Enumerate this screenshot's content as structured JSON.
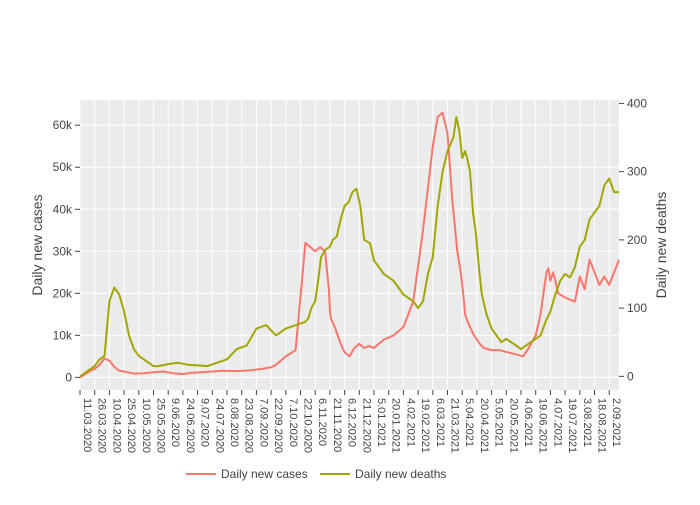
{
  "chart_data": {
    "type": "line",
    "title": "",
    "x_tick_labels": [
      "11.03.2020",
      "26.03.2020",
      "10.04.2020",
      "25.04.2020",
      "10.05.2020",
      "25.05.2020",
      "9.06.2020",
      "24.06.2020",
      "9.07.2020",
      "24.07.2020",
      "8.08.2020",
      "23.08.2020",
      "7.09.2020",
      "22.09.2020",
      "7.10.2020",
      "22.10.2020",
      "6.11.2020",
      "21.11.2020",
      "6.12.2020",
      "21.12.2020",
      "5.01.2021",
      "20.01.2021",
      "4.02.2021",
      "19.02.2021",
      "6.03.2021",
      "21.03.2021",
      "5.04.2021",
      "20.04.2021",
      "5.05.2021",
      "20.05.2021",
      "4.06.2021",
      "19.06.2021",
      "4.07.2021",
      "19.07.2021",
      "3.08.2021",
      "18.08.2021",
      "2.09.2021"
    ],
    "x_range_days": [
      0,
      550
    ],
    "y_left": {
      "title": "Daily new cases",
      "range": [
        -3000,
        66000
      ],
      "ticks": [
        0,
        10000,
        20000,
        30000,
        40000,
        50000,
        60000
      ],
      "tick_labels": [
        "0",
        "10k",
        "20k",
        "30k",
        "40k",
        "50k",
        "60k"
      ]
    },
    "y_right": {
      "title": "Daily new deaths",
      "range": [
        -20,
        405
      ],
      "ticks": [
        0,
        100,
        200,
        300,
        400
      ],
      "tick_labels": [
        "0",
        "100",
        "200",
        "300",
        "400"
      ]
    },
    "grid": true,
    "legend_position": "bottom",
    "series": [
      {
        "name": "Daily new cases",
        "axis": "left",
        "color": "#f8766d",
        "x": [
          0,
          10,
          15,
          20,
          25,
          30,
          35,
          40,
          45,
          55,
          65,
          75,
          85,
          95,
          105,
          115,
          130,
          145,
          160,
          175,
          185,
          195,
          200,
          210,
          220,
          230,
          240,
          245,
          250,
          254,
          255,
          256,
          258,
          260,
          263,
          266,
          270,
          275,
          280,
          285,
          290,
          295,
          300,
          305,
          310,
          320,
          330,
          340,
          350,
          355,
          360,
          365,
          370,
          375,
          380,
          385,
          388,
          391,
          393,
          396,
          398,
          400,
          402,
          405,
          408,
          412,
          420,
          428,
          436,
          445,
          452,
          458,
          465,
          470,
          473,
          476,
          478,
          480,
          483,
          488,
          495,
          505,
          510,
          515,
          520,
          530,
          535,
          540,
          545,
          550
        ],
        "y": [
          0,
          1500,
          2000,
          3000,
          4500,
          4000,
          2500,
          1600,
          1400,
          900,
          1000,
          1200,
          1400,
          1000,
          800,
          1100,
          1300,
          1600,
          1500,
          1700,
          2000,
          2400,
          3000,
          5000,
          6500,
          32000,
          30000,
          31000,
          30000,
          21000,
          16000,
          14000,
          13000,
          12000,
          10000,
          8000,
          6000,
          5000,
          7000,
          8000,
          7000,
          7500,
          7000,
          8000,
          9000,
          10000,
          12000,
          18000,
          35000,
          45000,
          55000,
          62000,
          63000,
          58000,
          42000,
          30000,
          26000,
          20000,
          15000,
          13000,
          12000,
          11000,
          10000,
          9000,
          8000,
          7000,
          6500,
          6500,
          6000,
          5500,
          5000,
          7000,
          10000,
          15000,
          20000,
          25000,
          26000,
          23000,
          25000,
          20000,
          19000,
          18000,
          24000,
          21000,
          28000,
          22000,
          24000,
          22000,
          25000,
          28000
        ],
        "y_scale": "exact_from_chart_units"
      },
      {
        "name": "Daily new deaths",
        "axis": "right",
        "color": "#a3a500",
        "x": [
          0,
          10,
          15,
          20,
          25,
          30,
          35,
          40,
          45,
          50,
          55,
          60,
          65,
          70,
          75,
          80,
          90,
          100,
          110,
          120,
          130,
          140,
          150,
          160,
          170,
          180,
          190,
          200,
          210,
          220,
          230,
          233,
          236,
          240,
          243,
          246,
          250,
          255,
          258,
          262,
          266,
          270,
          274,
          278,
          282,
          286,
          290,
          296,
          300,
          310,
          320,
          330,
          340,
          345,
          350,
          355,
          360,
          365,
          370,
          375,
          378,
          381,
          384,
          387,
          390,
          393,
          395,
          398,
          401,
          404,
          407,
          410,
          415,
          420,
          425,
          430,
          435,
          440,
          445,
          450,
          455,
          460,
          465,
          470,
          475,
          480,
          485,
          490,
          495,
          500,
          505,
          510,
          515,
          520,
          525,
          530,
          535,
          540,
          545,
          550
        ],
        "y": [
          0,
          10,
          15,
          25,
          30,
          110,
          130,
          120,
          95,
          60,
          40,
          30,
          25,
          20,
          15,
          15,
          18,
          20,
          17,
          16,
          15,
          20,
          25,
          40,
          45,
          70,
          75,
          60,
          70,
          75,
          80,
          85,
          100,
          110,
          140,
          175,
          185,
          190,
          200,
          205,
          230,
          250,
          255,
          270,
          275,
          250,
          200,
          195,
          170,
          150,
          140,
          120,
          110,
          100,
          110,
          150,
          175,
          250,
          300,
          330,
          340,
          350,
          380,
          360,
          320,
          330,
          320,
          300,
          240,
          210,
          160,
          120,
          90,
          70,
          60,
          50,
          55,
          50,
          45,
          40,
          45,
          50,
          55,
          60,
          80,
          95,
          120,
          140,
          150,
          145,
          160,
          190,
          200,
          230,
          240,
          250,
          280,
          290,
          270,
          270
        ]
      }
    ]
  }
}
